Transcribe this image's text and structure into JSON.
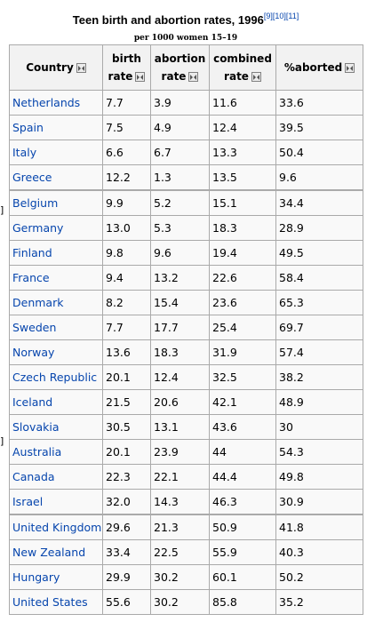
{
  "caption": {
    "title": "Teen birth and abortion rates, 1996",
    "refs": [
      "[9]",
      "[10]",
      "[11]"
    ],
    "subtitle": "per 1000 women 15–19"
  },
  "edge_marks": [
    "]",
    "]"
  ],
  "columns": [
    {
      "label": "Country",
      "line2": ""
    },
    {
      "label": "birth",
      "line2": "rate"
    },
    {
      "label": "abortion",
      "line2": "rate"
    },
    {
      "label": "combined",
      "line2": "rate"
    },
    {
      "label": "%aborted",
      "line2": ""
    }
  ],
  "sort_icon": "sort-toggle-icon",
  "rows": [
    {
      "country": "Netherlands",
      "birth": "7.7",
      "abortion": "3.9",
      "combined": "11.6",
      "aborted": "33.6"
    },
    {
      "country": "Spain",
      "birth": "7.5",
      "abortion": "4.9",
      "combined": "12.4",
      "aborted": "39.5"
    },
    {
      "country": "Italy",
      "birth": "6.6",
      "abortion": "6.7",
      "combined": "13.3",
      "aborted": "50.4"
    },
    {
      "country": "Greece",
      "birth": "12.2",
      "abortion": "1.3",
      "combined": "13.5",
      "aborted": "9.6"
    },
    {
      "country": "Belgium",
      "birth": "9.9",
      "abortion": "5.2",
      "combined": "15.1",
      "aborted": "34.4"
    },
    {
      "country": "Germany",
      "birth": "13.0",
      "abortion": "5.3",
      "combined": "18.3",
      "aborted": "28.9"
    },
    {
      "country": "Finland",
      "birth": "9.8",
      "abortion": "9.6",
      "combined": "19.4",
      "aborted": "49.5"
    },
    {
      "country": "France",
      "birth": "9.4",
      "abortion": "13.2",
      "combined": "22.6",
      "aborted": "58.4"
    },
    {
      "country": "Denmark",
      "birth": "8.2",
      "abortion": "15.4",
      "combined": "23.6",
      "aborted": "65.3"
    },
    {
      "country": "Sweden",
      "birth": "7.7",
      "abortion": "17.7",
      "combined": "25.4",
      "aborted": "69.7"
    },
    {
      "country": "Norway",
      "birth": "13.6",
      "abortion": "18.3",
      "combined": "31.9",
      "aborted": "57.4"
    },
    {
      "country": "Czech Republic",
      "birth": "20.1",
      "abortion": "12.4",
      "combined": "32.5",
      "aborted": "38.2"
    },
    {
      "country": "Iceland",
      "birth": "21.5",
      "abortion": "20.6",
      "combined": "42.1",
      "aborted": "48.9"
    },
    {
      "country": "Slovakia",
      "birth": "30.5",
      "abortion": "13.1",
      "combined": "43.6",
      "aborted": "30"
    },
    {
      "country": "Australia",
      "birth": "20.1",
      "abortion": "23.9",
      "combined": "44",
      "aborted": "54.3"
    },
    {
      "country": "Canada",
      "birth": "22.3",
      "abortion": "22.1",
      "combined": "44.4",
      "aborted": "49.8"
    },
    {
      "country": "Israel",
      "birth": "32.0",
      "abortion": "14.3",
      "combined": "46.3",
      "aborted": "30.9"
    },
    {
      "country": "United Kingdom",
      "birth": "29.6",
      "abortion": "21.3",
      "combined": "50.9",
      "aborted": "41.8"
    },
    {
      "country": "New Zealand",
      "birth": "33.4",
      "abortion": "22.5",
      "combined": "55.9",
      "aborted": "40.3"
    },
    {
      "country": "Hungary",
      "birth": "29.9",
      "abortion": "30.2",
      "combined": "60.1",
      "aborted": "50.2"
    },
    {
      "country": "United States",
      "birth": "55.6",
      "abortion": "30.2",
      "combined": "85.8",
      "aborted": "35.2"
    }
  ]
}
